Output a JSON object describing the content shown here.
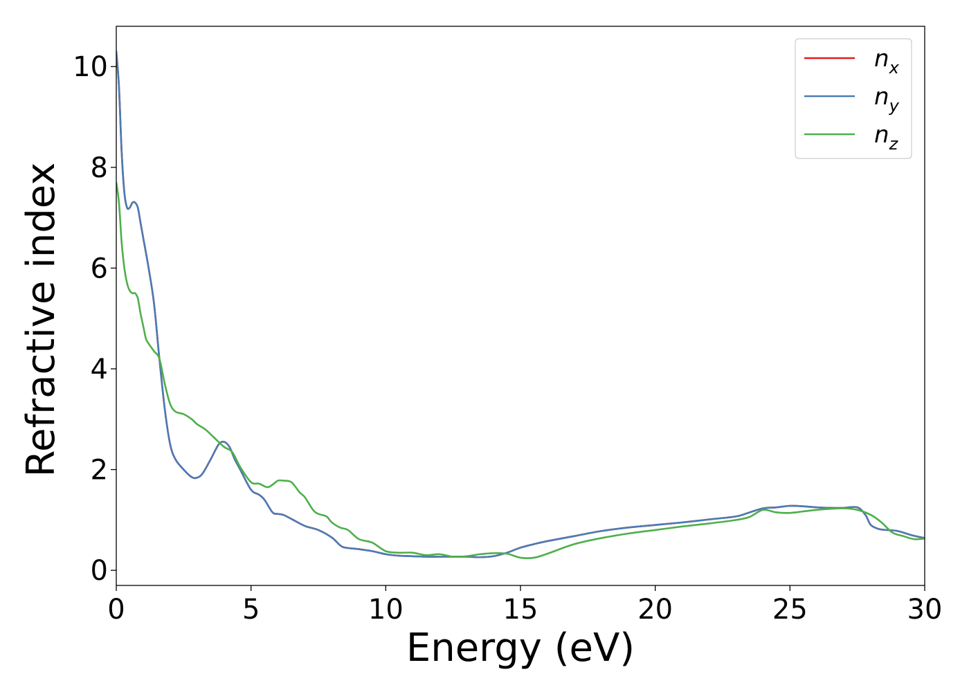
{
  "chart_data": {
    "type": "line",
    "xlabel": "Energy (eV)",
    "ylabel": "Refractive index",
    "xlim": [
      0,
      30
    ],
    "ylim": [
      -0.3,
      10.8
    ],
    "xticks": [
      0,
      5,
      10,
      15,
      20,
      25,
      30
    ],
    "yticks": [
      0,
      2,
      4,
      6,
      8,
      10
    ],
    "grid": false,
    "legend_position": "top-right",
    "series": [
      {
        "name": "n",
        "subscript": "x",
        "color": "#e41a1c",
        "x": [
          0,
          0.1,
          0.2,
          0.3,
          0.4,
          0.5,
          0.6,
          0.7,
          0.8,
          0.9,
          1.0,
          1.2,
          1.4,
          1.6,
          1.8,
          2.0,
          2.2,
          2.5,
          2.8,
          3.0,
          3.2,
          3.5,
          3.8,
          4.0,
          4.2,
          4.4,
          4.6,
          5.0,
          5.3,
          5.5,
          5.8,
          6.0,
          6.2,
          6.5,
          7.0,
          7.5,
          8.0,
          8.3,
          8.5,
          9.0,
          9.5,
          10.0,
          10.5,
          11.0,
          11.5,
          12.0,
          12.5,
          13.0,
          13.5,
          14.0,
          14.5,
          15.0,
          15.5,
          16.0,
          17.0,
          18.0,
          19.0,
          20.0,
          21.0,
          22.0,
          23.0,
          23.5,
          24.0,
          24.5,
          25.0,
          25.5,
          26.0,
          26.5,
          27.0,
          27.5,
          27.8,
          28.0,
          28.3,
          28.6,
          29.0,
          29.5,
          30.0
        ],
        "y": [
          10.3,
          9.6,
          8.3,
          7.5,
          7.2,
          7.2,
          7.3,
          7.3,
          7.2,
          6.9,
          6.6,
          6.0,
          5.3,
          4.2,
          3.2,
          2.5,
          2.2,
          2.0,
          1.85,
          1.84,
          1.92,
          2.2,
          2.5,
          2.55,
          2.45,
          2.2,
          2.0,
          1.6,
          1.5,
          1.4,
          1.15,
          1.12,
          1.1,
          1.02,
          0.88,
          0.8,
          0.65,
          0.5,
          0.45,
          0.42,
          0.38,
          0.32,
          0.29,
          0.28,
          0.27,
          0.27,
          0.27,
          0.27,
          0.26,
          0.28,
          0.35,
          0.45,
          0.52,
          0.58,
          0.68,
          0.78,
          0.85,
          0.9,
          0.95,
          1.01,
          1.07,
          1.15,
          1.23,
          1.25,
          1.28,
          1.27,
          1.25,
          1.24,
          1.24,
          1.25,
          1.1,
          0.9,
          0.82,
          0.8,
          0.78,
          0.7,
          0.64
        ]
      },
      {
        "name": "n",
        "subscript": "y",
        "color": "#4a7cb5",
        "x": [
          0,
          0.1,
          0.2,
          0.3,
          0.4,
          0.5,
          0.6,
          0.7,
          0.8,
          0.9,
          1.0,
          1.2,
          1.4,
          1.6,
          1.8,
          2.0,
          2.2,
          2.5,
          2.8,
          3.0,
          3.2,
          3.5,
          3.8,
          4.0,
          4.2,
          4.4,
          4.6,
          5.0,
          5.3,
          5.5,
          5.8,
          6.0,
          6.2,
          6.5,
          7.0,
          7.5,
          8.0,
          8.3,
          8.5,
          9.0,
          9.5,
          10.0,
          10.5,
          11.0,
          11.5,
          12.0,
          12.5,
          13.0,
          13.5,
          14.0,
          14.5,
          15.0,
          15.5,
          16.0,
          17.0,
          18.0,
          19.0,
          20.0,
          21.0,
          22.0,
          23.0,
          23.5,
          24.0,
          24.5,
          25.0,
          25.5,
          26.0,
          26.5,
          27.0,
          27.5,
          27.8,
          28.0,
          28.3,
          28.6,
          29.0,
          29.5,
          30.0
        ],
        "y": [
          10.3,
          9.6,
          8.3,
          7.5,
          7.2,
          7.2,
          7.3,
          7.3,
          7.2,
          6.9,
          6.6,
          6.0,
          5.3,
          4.2,
          3.2,
          2.5,
          2.2,
          2.0,
          1.85,
          1.84,
          1.92,
          2.2,
          2.5,
          2.55,
          2.45,
          2.2,
          2.0,
          1.6,
          1.5,
          1.4,
          1.15,
          1.12,
          1.1,
          1.02,
          0.88,
          0.8,
          0.65,
          0.5,
          0.45,
          0.42,
          0.38,
          0.32,
          0.29,
          0.28,
          0.27,
          0.27,
          0.27,
          0.27,
          0.26,
          0.28,
          0.35,
          0.45,
          0.52,
          0.58,
          0.68,
          0.78,
          0.85,
          0.9,
          0.95,
          1.01,
          1.07,
          1.15,
          1.23,
          1.25,
          1.28,
          1.27,
          1.25,
          1.24,
          1.24,
          1.25,
          1.1,
          0.9,
          0.82,
          0.8,
          0.78,
          0.7,
          0.64
        ]
      },
      {
        "name": "n",
        "subscript": "z",
        "color": "#4daf4a",
        "x": [
          0,
          0.1,
          0.2,
          0.3,
          0.4,
          0.5,
          0.6,
          0.7,
          0.8,
          0.9,
          1.0,
          1.1,
          1.2,
          1.4,
          1.6,
          1.8,
          2.0,
          2.2,
          2.5,
          2.8,
          3.0,
          3.3,
          3.6,
          4.0,
          4.3,
          4.6,
          5.0,
          5.3,
          5.6,
          5.8,
          6.0,
          6.2,
          6.5,
          6.8,
          7.0,
          7.3,
          7.5,
          7.8,
          8.0,
          8.3,
          8.6,
          9.0,
          9.5,
          10.0,
          10.5,
          11.0,
          11.5,
          12.0,
          12.5,
          13.0,
          13.5,
          14.0,
          14.5,
          15.0,
          15.5,
          16.0,
          17.0,
          18.0,
          19.0,
          20.0,
          21.0,
          22.0,
          23.0,
          23.5,
          24.0,
          24.5,
          25.0,
          25.5,
          26.0,
          26.5,
          27.0,
          27.5,
          28.0,
          28.4,
          28.8,
          29.2,
          29.6,
          30.0
        ],
        "y": [
          7.7,
          7.3,
          6.5,
          6.0,
          5.7,
          5.55,
          5.5,
          5.5,
          5.4,
          5.1,
          4.85,
          4.6,
          4.5,
          4.35,
          4.2,
          3.7,
          3.3,
          3.15,
          3.1,
          3.0,
          2.9,
          2.8,
          2.65,
          2.45,
          2.35,
          2.05,
          1.75,
          1.72,
          1.65,
          1.7,
          1.78,
          1.78,
          1.75,
          1.55,
          1.45,
          1.2,
          1.12,
          1.07,
          0.95,
          0.85,
          0.8,
          0.62,
          0.55,
          0.38,
          0.35,
          0.35,
          0.3,
          0.32,
          0.27,
          0.28,
          0.32,
          0.34,
          0.33,
          0.25,
          0.25,
          0.33,
          0.52,
          0.64,
          0.73,
          0.8,
          0.87,
          0.93,
          1.0,
          1.06,
          1.2,
          1.15,
          1.14,
          1.17,
          1.2,
          1.22,
          1.23,
          1.2,
          1.1,
          0.95,
          0.75,
          0.68,
          0.62,
          0.63
        ]
      }
    ]
  }
}
